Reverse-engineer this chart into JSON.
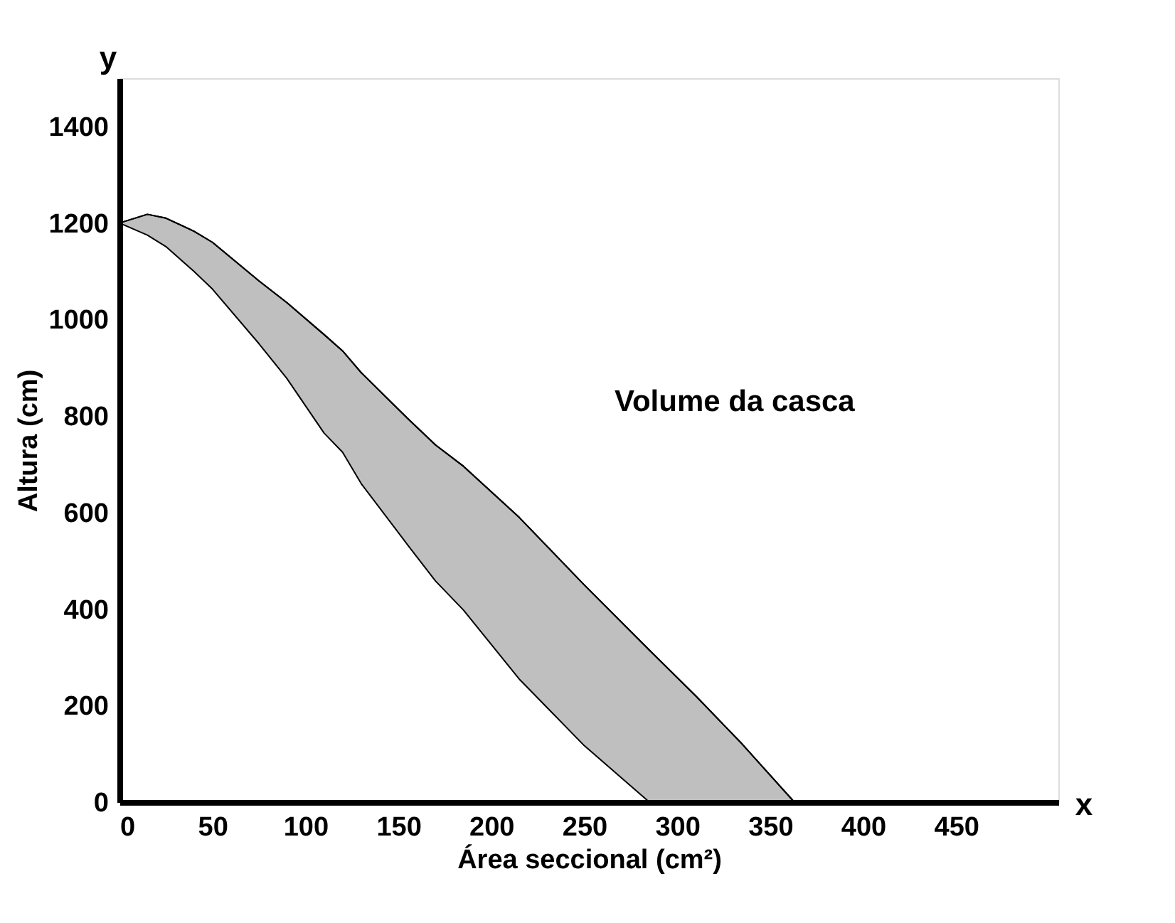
{
  "chart_data": {
    "type": "line",
    "xlabel": "Área seccional (cm²)",
    "ylabel": "Altura (cm)",
    "annotations": [
      "x",
      "y",
      "Volume da casca"
    ],
    "series": [
      {
        "color": "#000000",
        "x": [
          0,
          15,
          25,
          40,
          50,
          75,
          90,
          110,
          120,
          130,
          155,
          170,
          185,
          215,
          250,
          285,
          310,
          335,
          363
        ],
        "values": [
          1200,
          1218,
          1210,
          1183,
          1160,
          1080,
          1035,
          969,
          935,
          890,
          795,
          740,
          696,
          590,
          450,
          315,
          220,
          120,
          0
        ],
        "lower": [
          1200,
          1175,
          1151,
          1100,
          1063,
          950,
          878,
          765,
          725,
          660,
          533,
          458,
          398,
          255,
          117,
          0,
          0,
          0,
          0
        ],
        "upper": [
          1200,
          1218,
          1210,
          1183,
          1160,
          1080,
          1035,
          969,
          935,
          890,
          795,
          740,
          696,
          590,
          450,
          315,
          220,
          120,
          0
        ]
      }
    ],
    "xlim": [
      0,
      505
    ],
    "ylim": [
      0,
      1500
    ],
    "xticks": [
      0,
      50,
      100,
      150,
      200,
      250,
      300,
      350,
      400,
      450
    ],
    "yticks": [
      0,
      200,
      400,
      600,
      800,
      1000,
      1200,
      1400
    ],
    "grid": false,
    "legend": false
  }
}
